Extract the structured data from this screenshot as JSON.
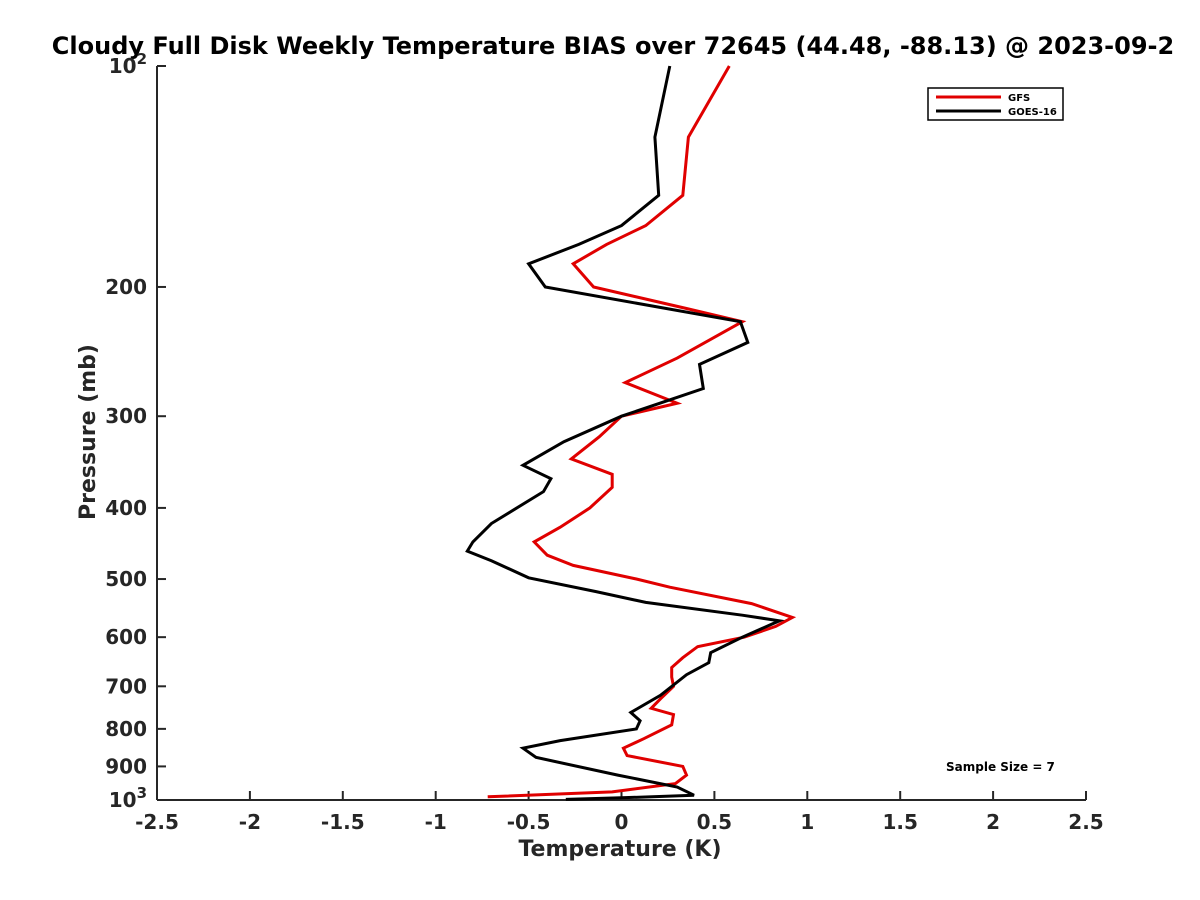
{
  "chart_data": {
    "type": "line",
    "title": "Cloudy Full Disk Weekly Temperature BIAS over 72645 (44.48, -88.13) @ 2023-09-2",
    "xlabel": "Temperature (K)",
    "ylabel": "Pressure (mb)",
    "xlim": [
      -2.5,
      2.5
    ],
    "ylim": [
      100,
      1000
    ],
    "y_scale": "log",
    "y_reversed": true,
    "grid": false,
    "legend_position": "top-right",
    "x_ticks": [
      "-2.5",
      "-2",
      "-1.5",
      "-1",
      "-0.5",
      "0",
      "0.5",
      "1",
      "1.5",
      "2",
      "2.5"
    ],
    "y_ticks": [
      {
        "value": 100,
        "label": "10",
        "sup": "2"
      },
      {
        "value": 200,
        "label": "200"
      },
      {
        "value": 300,
        "label": "300"
      },
      {
        "value": 400,
        "label": "400"
      },
      {
        "value": 500,
        "label": "500"
      },
      {
        "value": 600,
        "label": "600"
      },
      {
        "value": 700,
        "label": "700"
      },
      {
        "value": 800,
        "label": "800"
      },
      {
        "value": 900,
        "label": "900"
      },
      {
        "value": 1000,
        "label": "10",
        "sup": "3"
      }
    ],
    "series": [
      {
        "name": "GFS",
        "color": "#e00000",
        "points": [
          [
            0.58,
            100
          ],
          [
            0.36,
            125
          ],
          [
            0.33,
            150
          ],
          [
            0.13,
            165
          ],
          [
            -0.08,
            175
          ],
          [
            -0.26,
            186
          ],
          [
            -0.15,
            200
          ],
          [
            0.35,
            214
          ],
          [
            0.65,
            223
          ],
          [
            0.3,
            250
          ],
          [
            0.02,
            270
          ],
          [
            0.3,
            288
          ],
          [
            0.0,
            300
          ],
          [
            -0.12,
            320
          ],
          [
            -0.27,
            343
          ],
          [
            -0.05,
            360
          ],
          [
            -0.05,
            375
          ],
          [
            -0.17,
            400
          ],
          [
            -0.33,
            425
          ],
          [
            -0.47,
            445
          ],
          [
            -0.4,
            464
          ],
          [
            -0.26,
            479
          ],
          [
            0.08,
            500
          ],
          [
            0.26,
            513
          ],
          [
            0.7,
            540
          ],
          [
            0.92,
            564
          ],
          [
            0.83,
            580
          ],
          [
            0.66,
            600
          ],
          [
            0.41,
            618
          ],
          [
            0.33,
            640
          ],
          [
            0.27,
            660
          ],
          [
            0.27,
            680
          ],
          [
            0.28,
            700
          ],
          [
            0.21,
            728
          ],
          [
            0.16,
            750
          ],
          [
            0.28,
            765
          ],
          [
            0.27,
            790
          ],
          [
            0.12,
            825
          ],
          [
            0.01,
            850
          ],
          [
            0.03,
            870
          ],
          [
            0.33,
            900
          ],
          [
            0.35,
            925
          ],
          [
            0.29,
            950
          ],
          [
            -0.05,
            975
          ],
          [
            -0.72,
            990
          ]
        ]
      },
      {
        "name": "GOES-16",
        "color": "#000000",
        "points": [
          [
            0.26,
            100
          ],
          [
            0.18,
            125
          ],
          [
            0.2,
            150
          ],
          [
            0.0,
            165
          ],
          [
            -0.23,
            175
          ],
          [
            -0.5,
            186
          ],
          [
            -0.41,
            200
          ],
          [
            0.64,
            223
          ],
          [
            0.68,
            238
          ],
          [
            0.42,
            255
          ],
          [
            0.44,
            275
          ],
          [
            0.0,
            300
          ],
          [
            -0.31,
            325
          ],
          [
            -0.53,
            350
          ],
          [
            -0.38,
            365
          ],
          [
            -0.42,
            380
          ],
          [
            -0.7,
            420
          ],
          [
            -0.8,
            445
          ],
          [
            -0.83,
            458
          ],
          [
            -0.7,
            472
          ],
          [
            -0.5,
            498
          ],
          [
            -0.14,
            520
          ],
          [
            0.13,
            538
          ],
          [
            0.65,
            560
          ],
          [
            0.85,
            570
          ],
          [
            0.65,
            600
          ],
          [
            0.48,
            630
          ],
          [
            0.47,
            650
          ],
          [
            0.35,
            675
          ],
          [
            0.21,
            720
          ],
          [
            0.05,
            760
          ],
          [
            0.1,
            780
          ],
          [
            0.08,
            800
          ],
          [
            -0.33,
            830
          ],
          [
            -0.53,
            850
          ],
          [
            -0.46,
            875
          ],
          [
            -0.02,
            925
          ],
          [
            0.3,
            960
          ],
          [
            0.39,
            985
          ],
          [
            0.0,
            993
          ],
          [
            -0.3,
            998
          ]
        ]
      }
    ],
    "annotation": "Sample Size = 7"
  }
}
